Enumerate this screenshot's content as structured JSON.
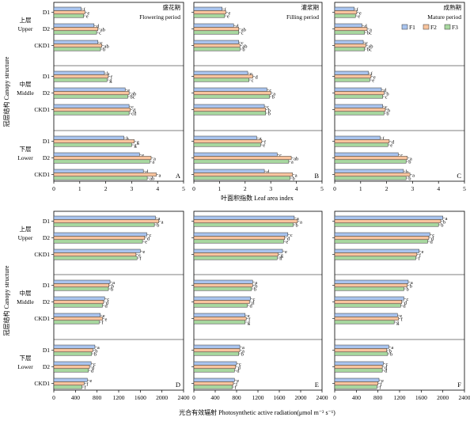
{
  "chart_data": {
    "type": "bar",
    "orientation": "horizontal",
    "ylabel": "冠层结构 Canopy structure",
    "series": [
      {
        "name": "F1",
        "color": "#a9c4ee"
      },
      {
        "name": "F2",
        "color": "#f8c49e"
      },
      {
        "name": "F3",
        "color": "#a8d8a0"
      }
    ],
    "layers": [
      {
        "cn": "上层",
        "en": "Upper",
        "treatments": [
          "D1",
          "D2",
          "CKD1"
        ]
      },
      {
        "cn": "中层",
        "en": "Middle",
        "treatments": [
          "D1",
          "D2",
          "CKD1"
        ]
      },
      {
        "cn": "下层",
        "en": "Lower",
        "treatments": [
          "D1",
          "D2",
          "CKD1"
        ]
      }
    ],
    "periods": [
      {
        "cn": "盛花期",
        "en": "Flowering period"
      },
      {
        "cn": "灌浆期",
        "en": "Filling period"
      },
      {
        "cn": "成熟期",
        "en": "Mature period"
      }
    ],
    "rows": [
      {
        "xlabel": "叶面积指数 Leaf area index",
        "xlim": [
          0,
          5
        ],
        "xticks": [
          "0",
          "1",
          "2",
          "3",
          "4",
          "5"
        ],
        "panels": [
          {
            "label": "A",
            "values": [
              [
                1.05,
                1.2,
                1.15
              ],
              [
                1.55,
                1.7,
                1.65
              ],
              [
                1.7,
                1.85,
                1.8
              ],
              [
                1.95,
                2.1,
                2.05
              ],
              [
                2.75,
                2.9,
                2.85
              ],
              [
                2.9,
                2.95,
                2.9
              ],
              [
                2.7,
                3.1,
                3.0
              ],
              [
                3.3,
                3.75,
                3.7
              ],
              [
                3.45,
                3.95,
                3.6
              ]
            ],
            "letters": [
              [
                "f",
                "e",
                "e"
              ],
              [
                "d",
                "ab",
                "c"
              ],
              [
                "c",
                "ab",
                "b"
              ],
              [
                "h",
                "f",
                "g"
              ],
              [
                "e",
                "ab",
                "bc"
              ],
              [
                "c",
                "d",
                "cd"
              ],
              [
                "h",
                "g",
                "g"
              ],
              [
                "e",
                "a",
                "a"
              ],
              [
                "d",
                "a",
                "ab"
              ]
            ]
          },
          {
            "label": "B",
            "values": [
              [
                1.1,
                1.25,
                1.2
              ],
              [
                1.55,
                1.75,
                1.75
              ],
              [
                1.75,
                1.8,
                1.8
              ],
              [
                2.1,
                2.3,
                2.15
              ],
              [
                2.85,
                3.0,
                2.95
              ],
              [
                2.75,
                2.8,
                2.8
              ],
              [
                2.45,
                2.65,
                2.6
              ],
              [
                3.25,
                3.8,
                3.7
              ],
              [
                2.75,
                3.85,
                3.75
              ]
            ],
            "letters": [
              [
                "f",
                "e",
                "e"
              ],
              [
                "d",
                "ab",
                "c"
              ],
              [
                "c",
                "ab",
                "b"
              ],
              [
                "e",
                "d",
                "c"
              ],
              [
                "c",
                "a",
                "b"
              ],
              [
                "c",
                "b",
                "b"
              ],
              [
                "g",
                "f",
                "e"
              ],
              [
                "c",
                "ab",
                "a"
              ],
              [
                "d",
                "a",
                "b"
              ]
            ]
          },
          {
            "label": "C",
            "values": [
              [
                0.75,
                0.85,
                0.8
              ],
              [
                1.05,
                1.25,
                1.15
              ],
              [
                1.1,
                1.2,
                1.15
              ],
              [
                1.3,
                1.4,
                1.35
              ],
              [
                1.8,
                1.9,
                1.85
              ],
              [
                1.85,
                1.95,
                1.9
              ],
              [
                1.75,
                2.1,
                2.05
              ],
              [
                2.45,
                2.8,
                2.75
              ],
              [
                2.65,
                2.9,
                2.75
              ]
            ],
            "letters": [
              [
                "f",
                "e",
                "e"
              ],
              [
                "d",
                "a",
                "bc"
              ],
              [
                "c",
                "ab",
                "bc"
              ],
              [
                "f",
                "e",
                "e"
              ],
              [
                "d",
                "b",
                "c"
              ],
              [
                "c",
                "b",
                "b"
              ],
              [
                "f",
                "d",
                "e"
              ],
              [
                "c",
                "a",
                "b"
              ],
              [
                "b",
                "a",
                "b"
              ]
            ]
          }
        ]
      },
      {
        "xlabel": "光合有效辐射 Photosynthetic active radiation(μmol m⁻² s⁻¹)",
        "xlim": [
          0,
          2400
        ],
        "xticks": [
          "0",
          "400",
          "800",
          "1200",
          "1600",
          "2000",
          "2400"
        ],
        "panels": [
          {
            "label": "D",
            "values": [
              [
                1880,
                1940,
                1860
              ],
              [
                1720,
                1680,
                1640
              ],
              [
                1600,
                1520,
                1540
              ],
              [
                1040,
                1020,
                1010
              ],
              [
                940,
                920,
                900
              ],
              [
                860,
                900,
                840
              ],
              [
                760,
                720,
                700
              ],
              [
                690,
                660,
                640
              ],
              [
                620,
                560,
                520
              ]
            ],
            "letters": [
              [
                "a",
                "a",
                "b"
              ],
              [
                "c",
                "d",
                "e"
              ],
              [
                "e",
                "e",
                "f"
              ],
              [
                "a",
                "b",
                "b"
              ],
              [
                "c",
                "d",
                "d"
              ],
              [
                "e",
                "e",
                "f"
              ],
              [
                "a",
                "b",
                "b"
              ],
              [
                "c",
                "d",
                "d"
              ],
              [
                "e",
                "f",
                "f"
              ]
            ]
          },
          {
            "label": "E",
            "values": [
              [
                1880,
                1940,
                1860
              ],
              [
                1760,
                1700,
                1680
              ],
              [
                1660,
                1580,
                1560
              ],
              [
                1100,
                1100,
                1080
              ],
              [
                1060,
                1040,
                1000
              ],
              [
                960,
                980,
                960
              ],
              [
                860,
                860,
                840
              ],
              [
                800,
                780,
                760
              ],
              [
                760,
                740,
                720
              ]
            ],
            "letters": [
              [
                "a",
                "a",
                "b"
              ],
              [
                "c",
                "d",
                "e"
              ],
              [
                "e",
                "g",
                "h"
              ],
              [
                "a",
                "b",
                "b"
              ],
              [
                "c",
                "d",
                "d"
              ],
              [
                "e",
                "f",
                "g"
              ],
              [
                "a",
                "a",
                "b"
              ],
              [
                "c",
                "d",
                "d"
              ],
              [
                "e",
                "f",
                "f"
              ]
            ]
          },
          {
            "label": "F",
            "values": [
              [
                2000,
                1960,
                1920
              ],
              [
                1760,
                1740,
                1720
              ],
              [
                1560,
                1520,
                1500
              ],
              [
                1360,
                1340,
                1280
              ],
              [
                1280,
                1240,
                1220
              ],
              [
                1160,
                1180,
                1100
              ],
              [
                1000,
                960,
                980
              ],
              [
                900,
                880,
                880
              ],
              [
                820,
                800,
                780
              ]
            ],
            "letters": [
              [
                "a",
                "b",
                "b"
              ],
              [
                "c",
                "d",
                "d"
              ],
              [
                "e",
                "f",
                "f"
              ],
              [
                "a",
                "b",
                "b"
              ],
              [
                "c",
                "d",
                "d"
              ],
              [
                "e",
                "f",
                "g"
              ],
              [
                "a",
                "b",
                "b"
              ],
              [
                "c",
                "d",
                "d"
              ],
              [
                "e",
                "f",
                "f"
              ]
            ]
          }
        ]
      }
    ]
  }
}
